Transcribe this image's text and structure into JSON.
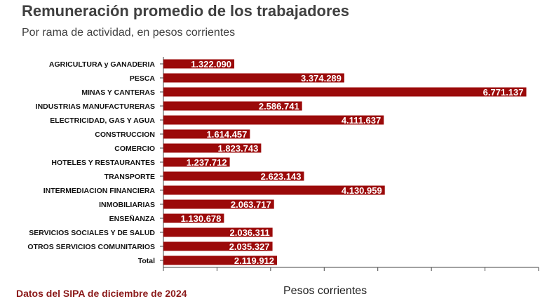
{
  "header": {
    "title": "Remuneración promedio de los trabajadores",
    "subtitle": "Por rama de actividad, en pesos corrientes"
  },
  "footer": {
    "source": "Datos del SIPA de diciembre de 2024"
  },
  "colors": {
    "bar": "#9b0a0a",
    "label_text": "#ffffff",
    "axis": "#444444",
    "category_text": "#111111"
  },
  "chart_data": {
    "type": "bar",
    "orientation": "horizontal",
    "categories": [
      "AGRICULTURA y GANADERIA",
      "PESCA",
      "MINAS Y CANTERAS",
      "INDUSTRIAS MANUFACTURERAS",
      "ELECTRICIDAD, GAS Y AGUA",
      "CONSTRUCCION",
      "COMERCIO",
      "HOTELES Y RESTAURANTES",
      "TRANSPORTE",
      "INTERMEDIACION FINANCIERA",
      "INMOBILIARIAS",
      "ENSEÑANZA",
      "SERVICIOS SOCIALES Y DE SALUD",
      "OTROS SERVICIOS COMUNITARIOS",
      "Total"
    ],
    "values": [
      1322090,
      3374289,
      6771137,
      2586741,
      4111637,
      1614457,
      1823743,
      1237712,
      2623143,
      4130959,
      2063717,
      1130678,
      2036311,
      2035327,
      2119912
    ],
    "value_labels": [
      "1.322.090",
      "3.374.289",
      "6.771.137",
      "2.586.741",
      "4.111.637",
      "1.614.457",
      "1.823.743",
      "1.237.712",
      "2.623.143",
      "4.130.959",
      "2.063.717",
      "1.130.678",
      "2.036.311",
      "2.035.327",
      "2.119.912"
    ],
    "xlabel": "Pesos corrientes",
    "ylabel": "",
    "xlim": [
      0,
      7000000
    ],
    "x_tick_step": 1000000,
    "x_tick_labels_shown": false,
    "grid": false,
    "legend": "none"
  }
}
